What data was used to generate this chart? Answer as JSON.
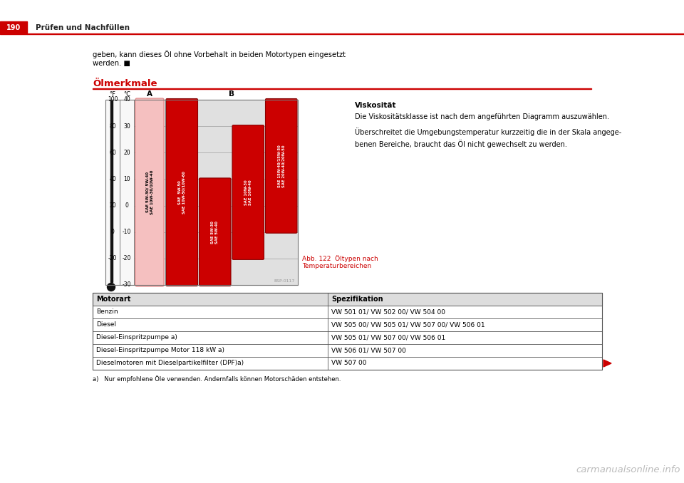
{
  "page_num": "190",
  "header_text": "Prüfen und Nachfüllen",
  "header_red": "#cc0000",
  "bg_color": "#ffffff",
  "intro_text": "geben, kann dieses Öl ohne Vorbehalt in beiden Motortypen eingesetzt\nwerden. ■",
  "section_title": "Ölmerkmale",
  "section_title_color": "#cc0000",
  "viskositaet_title": "Viskosität",
  "viskositaet_text1": "Die Viskositätsklasse ist nach dem angeführten Diagramm auszuwählen.",
  "viskositaet_text2": "Überschreitet die Umgebungstemperatur kurzzeitig die in der Skala angege-\nbenen Bereiche, braucht das Öl nicht gewechselt zu werden.",
  "diagram_caption": "Abb. 122  Öltypen nach\nTemperaturbereichen",
  "diagram_caption_color": "#cc0000",
  "diagram_ref": "BSP-0117",
  "temp_f_label": "°F",
  "temp_c_label": "°C",
  "col_a_label": "A",
  "col_b_label": "B",
  "bar_light_pink": "#f5c0c0",
  "bar_pink_edge": "#e08080",
  "bar_red": "#cc0000",
  "bar_red_edge": "#880000",
  "col_a_bar_label": "SAE 5W-30/ 5W-40\nSAE 10W-30/10W-40",
  "col_b_bar1_label": "SAE  5W-50\nSAE 10W-50/10W-60",
  "col_b_bar2_label": "SAE 5W-30\nSAE 5W-40",
  "col_b_bar3_label": "SAE 10W-30\nSAE 10W-40",
  "col_b_bar4_label": "SAE 15W-40/15W-50\nSAE 20W-40/20W-50",
  "table_header_col1": "Motorart",
  "table_header_col2": "Spezifikation",
  "table_rows": [
    [
      "Benzin",
      "VW 501 01/ VW 502 00/ VW 504 00"
    ],
    [
      "Diesel",
      "VW 505 00/ VW 505 01/ VW 507 00/ VW 506 01"
    ],
    [
      "Diesel-Einspritzpumpe a)",
      "VW 505 01/ VW 507 00/ VW 506 01"
    ],
    [
      "Diesel-Einspritzpumpe Motor 118 kW a)",
      "VW 506 01/ VW 507 00"
    ],
    [
      "Dieselmotoren mit Dieselpartikelfilter (DPF)a)",
      "VW 507 00"
    ]
  ],
  "footnote": "a)   Nur empfohlene Öle verwenden. Andernfalls können Motorschäden entstehen.",
  "red_arrow_color": "#cc0000",
  "table_border_color": "#555555",
  "grid_line_color": "#bbbbbb",
  "diag_bg_color": "#e0e0e0",
  "thermometer_color": "#111111"
}
